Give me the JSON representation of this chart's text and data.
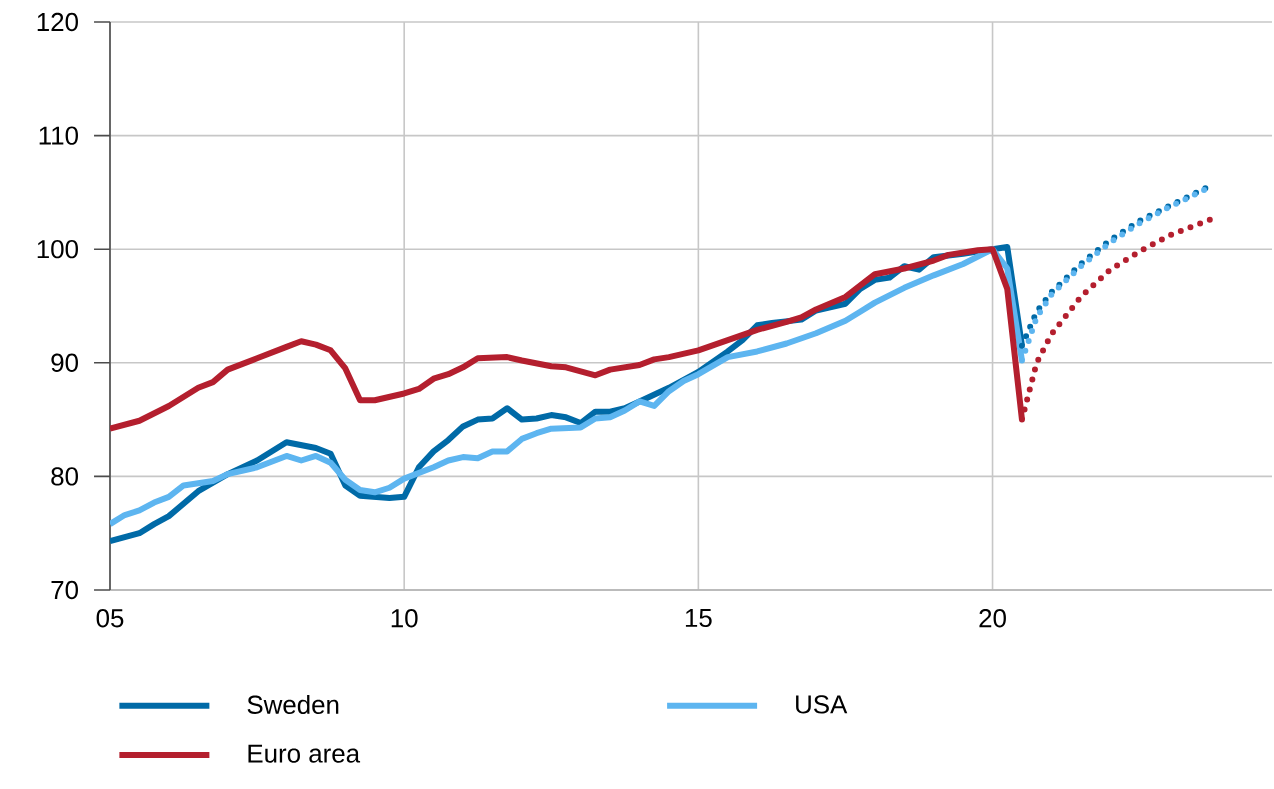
{
  "chart_data": {
    "type": "line",
    "xlim": [
      2005,
      2024.75
    ],
    "ylim": [
      70,
      120
    ],
    "xticks": [
      {
        "value": 2005,
        "label": "05"
      },
      {
        "value": 2010,
        "label": "10"
      },
      {
        "value": 2015,
        "label": "15"
      },
      {
        "value": 2020,
        "label": "20"
      }
    ],
    "yticks": [
      70,
      80,
      90,
      100,
      110,
      120
    ],
    "grid": true,
    "legend": "bottom",
    "series": [
      {
        "name": "Sweden",
        "color": "#006aa7",
        "line_style": "solid",
        "x": [
          2005,
          2005.5,
          2005.75,
          2006,
          2006.5,
          2007,
          2007.5,
          2008,
          2008.5,
          2008.75,
          2009,
          2009.25,
          2009.75,
          2010,
          2010.25,
          2010.5,
          2010.75,
          2011,
          2011.25,
          2011.5,
          2011.75,
          2012,
          2012.25,
          2012.5,
          2012.75,
          2013,
          2013.25,
          2013.5,
          2013.75,
          2014,
          2014.5,
          2015,
          2015.5,
          2015.75,
          2016,
          2016.25,
          2016.75,
          2017,
          2017.5,
          2017.75,
          2018,
          2018.25,
          2018.5,
          2018.75,
          2019,
          2019.5,
          2020,
          2020.25,
          2020.5
        ],
        "values": [
          74.3,
          75.0,
          75.8,
          76.5,
          78.7,
          80.2,
          81.4,
          83.0,
          82.5,
          82.0,
          79.2,
          78.3,
          78.1,
          78.2,
          80.8,
          82.2,
          83.2,
          84.4,
          85.0,
          85.1,
          86.0,
          85.0,
          85.1,
          85.4,
          85.2,
          84.7,
          85.7,
          85.7,
          86.0,
          86.6,
          87.8,
          89.2,
          91.0,
          92.0,
          93.3,
          93.5,
          93.8,
          94.6,
          95.2,
          96.5,
          97.3,
          97.5,
          98.5,
          98.2,
          99.3,
          99.6,
          100,
          100.2,
          91.5
        ]
      },
      {
        "name": "USA",
        "color": "#5db5f0",
        "line_style": "solid",
        "x": [
          2005,
          2005.25,
          2005.5,
          2005.75,
          2006,
          2006.25,
          2006.75,
          2007,
          2007.5,
          2008,
          2008.25,
          2008.5,
          2008.75,
          2009,
          2009.25,
          2009.5,
          2009.75,
          2010,
          2010.5,
          2010.75,
          2011,
          2011.25,
          2011.5,
          2011.75,
          2012,
          2012.25,
          2012.5,
          2013,
          2013.25,
          2013.5,
          2013.75,
          2014,
          2014.25,
          2014.5,
          2014.75,
          2015,
          2015.5,
          2016,
          2016.5,
          2017,
          2017.5,
          2017.75,
          2018,
          2018.5,
          2019,
          2019.5,
          2020,
          2020.25,
          2020.5
        ],
        "values": [
          75.8,
          76.6,
          77.0,
          77.7,
          78.2,
          79.2,
          79.6,
          80.2,
          80.8,
          81.8,
          81.4,
          81.8,
          81.2,
          79.7,
          78.8,
          78.6,
          79.0,
          79.8,
          80.8,
          81.4,
          81.7,
          81.6,
          82.2,
          82.2,
          83.3,
          83.8,
          84.2,
          84.3,
          85.1,
          85.2,
          85.8,
          86.6,
          86.2,
          87.5,
          88.4,
          89.0,
          90.5,
          91.0,
          91.7,
          92.6,
          93.7,
          94.5,
          95.3,
          96.6,
          97.7,
          98.7,
          100,
          98.3,
          90.2
        ]
      },
      {
        "name": "Euro area",
        "color": "#b41f2e",
        "line_style": "solid",
        "x": [
          2005,
          2005.5,
          2006,
          2006.5,
          2006.75,
          2007,
          2007.5,
          2008,
          2008.25,
          2008.5,
          2008.75,
          2009,
          2009.25,
          2009.5,
          2010,
          2010.25,
          2010.5,
          2010.75,
          2011,
          2011.25,
          2011.75,
          2012,
          2012.5,
          2012.75,
          2013.25,
          2013.5,
          2014,
          2014.25,
          2014.5,
          2015,
          2015.5,
          2016,
          2016.5,
          2016.75,
          2017,
          2017.5,
          2018,
          2018.5,
          2019,
          2019.25,
          2019.75,
          2020,
          2020.25,
          2020.5
        ],
        "values": [
          84.2,
          84.9,
          86.2,
          87.8,
          88.3,
          89.4,
          90.4,
          91.4,
          91.9,
          91.6,
          91.1,
          89.5,
          86.7,
          86.7,
          87.3,
          87.7,
          88.6,
          89.0,
          89.6,
          90.4,
          90.5,
          90.2,
          89.7,
          89.6,
          88.9,
          89.4,
          89.8,
          90.3,
          90.5,
          91.1,
          92.0,
          92.9,
          93.6,
          94.0,
          94.7,
          95.8,
          97.8,
          98.3,
          99.0,
          99.5,
          99.9,
          100,
          96.5,
          85.0
        ]
      },
      {
        "color": "#006aa7",
        "line_style": "dotted",
        "x": [
          2020.5,
          2020.75,
          2021,
          2021.5,
          2022,
          2022.5,
          2023,
          2023.75
        ],
        "values": [
          91.5,
          94.5,
          96.2,
          98.7,
          100.8,
          102.5,
          103.8,
          105.7
        ]
      },
      {
        "color": "#5db5f0",
        "line_style": "dotted",
        "x": [
          2020.5,
          2020.75,
          2021,
          2021.5,
          2022,
          2022.5,
          2023,
          2023.75
        ],
        "values": [
          90.2,
          94.0,
          96.0,
          98.5,
          100.6,
          102.3,
          103.7,
          105.6
        ]
      },
      {
        "color": "#b41f2e",
        "line_style": "dotted",
        "x": [
          2020.5,
          2020.75,
          2021,
          2021.5,
          2022,
          2022.5,
          2023,
          2023.75
        ],
        "values": [
          85.0,
          90.0,
          92.5,
          95.8,
          98.2,
          99.8,
          101.2,
          102.7
        ]
      }
    ]
  }
}
